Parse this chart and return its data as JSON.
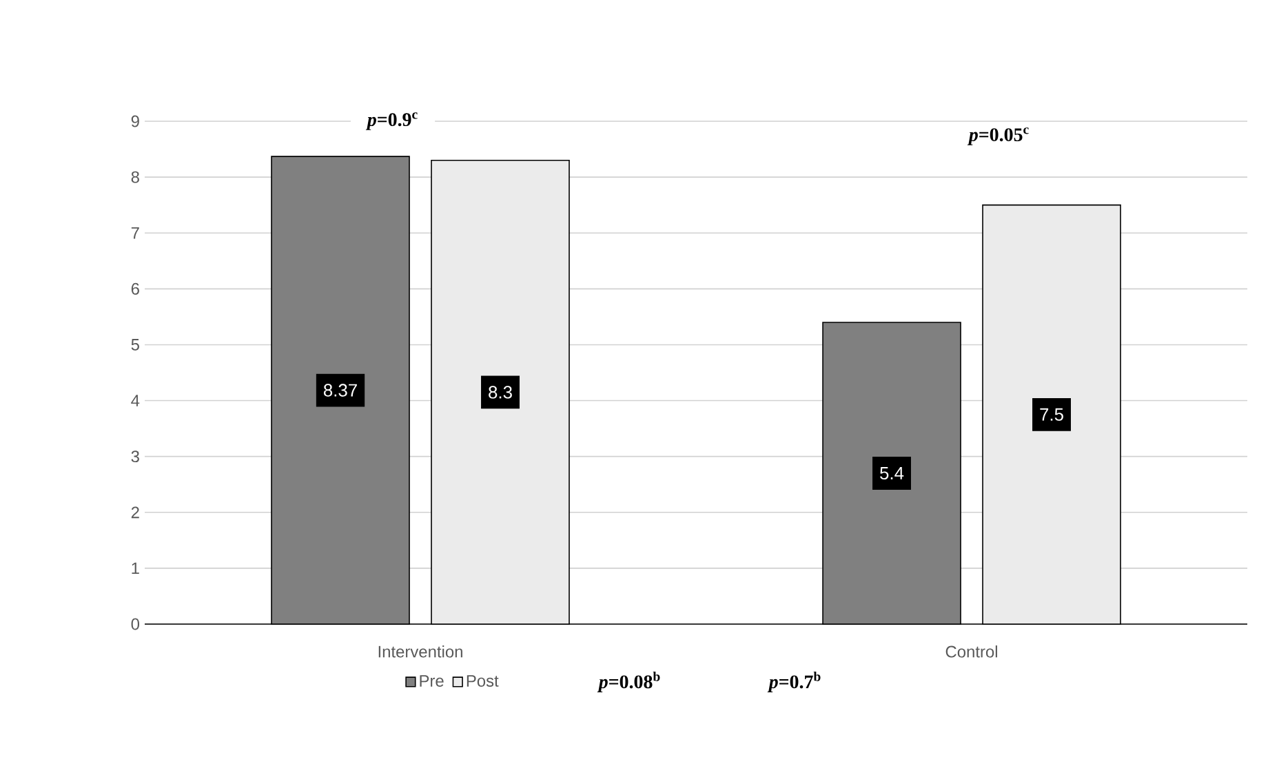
{
  "chart_data": {
    "type": "bar",
    "categories": [
      "Intervention",
      "Control"
    ],
    "series": [
      {
        "name": "Pre",
        "color": "#808080",
        "values": [
          8.37,
          5.4
        ]
      },
      {
        "name": "Post",
        "color": "#ebebeb",
        "values": [
          8.3,
          7.5
        ]
      }
    ],
    "ylim": [
      0,
      9
    ],
    "yticks": [
      0,
      1,
      2,
      3,
      4,
      5,
      6,
      7,
      8,
      9
    ],
    "grid": "y",
    "legend": "bottom",
    "data_labels": true,
    "annotations": [
      "*p*=0.9$^{c}$",
      "*p*=0.05$^{c}$",
      "*p*=0.08$^{b}$",
      "*p*=0.7$^{b}$"
    ]
  }
}
